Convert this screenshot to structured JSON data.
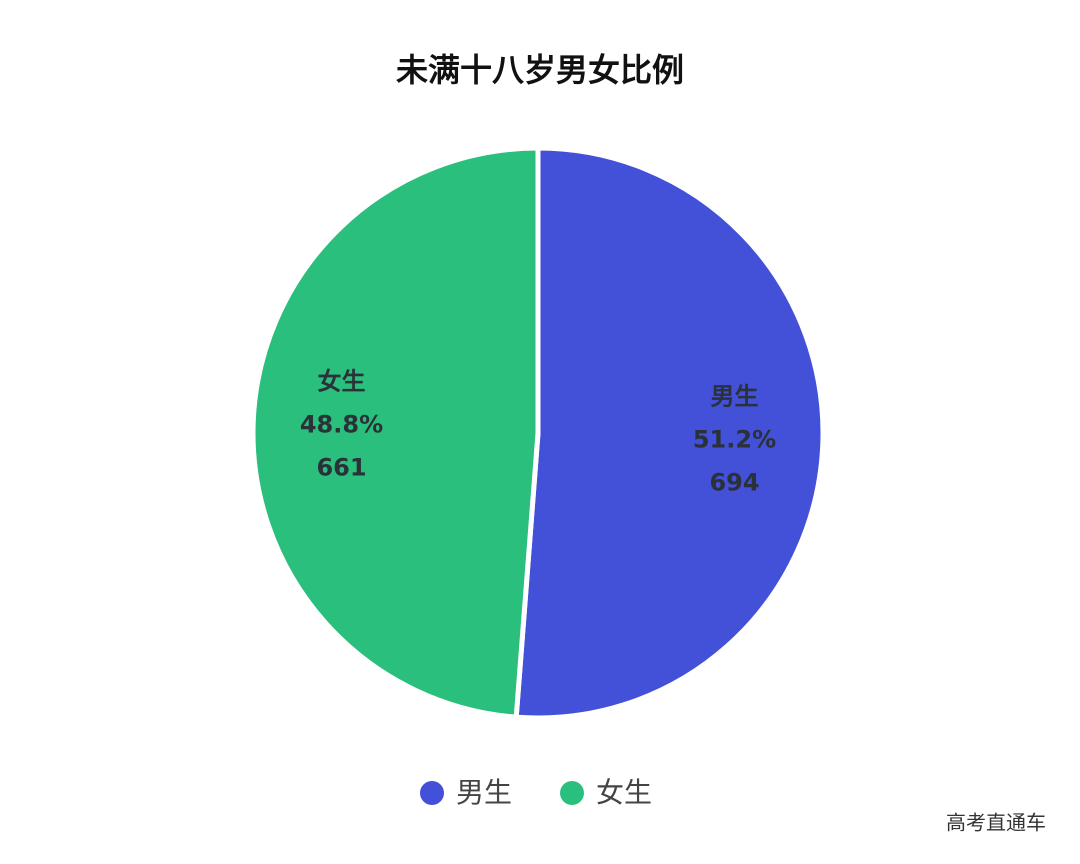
{
  "chart_data": {
    "type": "pie",
    "title": "未满十八岁男女比例",
    "categories": [
      "男生",
      "女生"
    ],
    "values": [
      694,
      661
    ],
    "percent_labels": [
      "51.2%",
      "48.8%"
    ],
    "colors": [
      "#4350d8",
      "#2bbf7e"
    ],
    "legend": "bottom",
    "watermark": "高考直通车"
  }
}
